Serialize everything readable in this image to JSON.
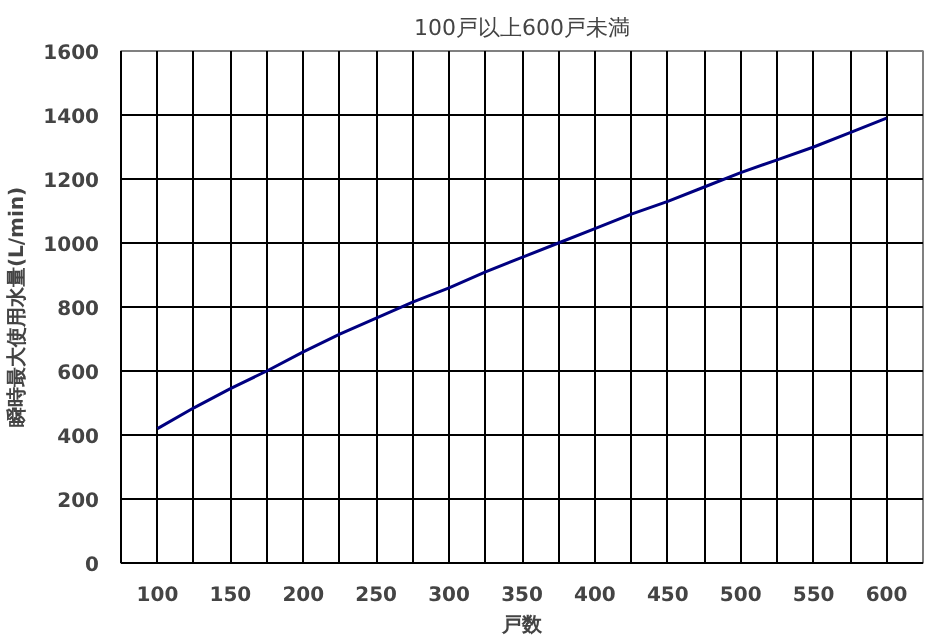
{
  "chart_data": {
    "type": "line",
    "title": "100戸以上600戸未満",
    "xlabel": "戸数",
    "ylabel": "瞬時最大使用水量(L/min)",
    "x": [
      100,
      125,
      150,
      175,
      200,
      225,
      250,
      275,
      300,
      325,
      350,
      375,
      400,
      425,
      450,
      475,
      500,
      525,
      550,
      575,
      600
    ],
    "series": [
      {
        "color": "#000080",
        "values": [
          420,
          485,
          545,
          600,
          660,
          715,
          765,
          815,
          860,
          910,
          955,
          1000,
          1045,
          1090,
          1130,
          1175,
          1220,
          1260,
          1300,
          1345,
          1390
        ]
      }
    ],
    "xlim": [
      75,
      625
    ],
    "xticks": [
      100,
      {
        "value": 125,
        "label": null
      },
      150,
      {
        "value": 175,
        "label": null
      },
      200,
      {
        "value": 225,
        "label": null
      },
      250,
      {
        "value": 275,
        "label": null
      },
      300,
      {
        "value": 325,
        "label": null
      },
      350,
      {
        "value": 375,
        "label": null
      },
      400,
      {
        "value": 425,
        "label": null
      },
      450,
      {
        "value": 475,
        "label": null
      },
      500,
      {
        "value": 525,
        "label": null
      },
      550,
      {
        "value": 575,
        "label": null
      },
      600
    ],
    "ylim": [
      0,
      1600
    ],
    "yticks": [
      0,
      200,
      400,
      600,
      800,
      1000,
      1200,
      1400,
      1600
    ],
    "grid": true,
    "marker": "none",
    "line_style": "solid"
  }
}
